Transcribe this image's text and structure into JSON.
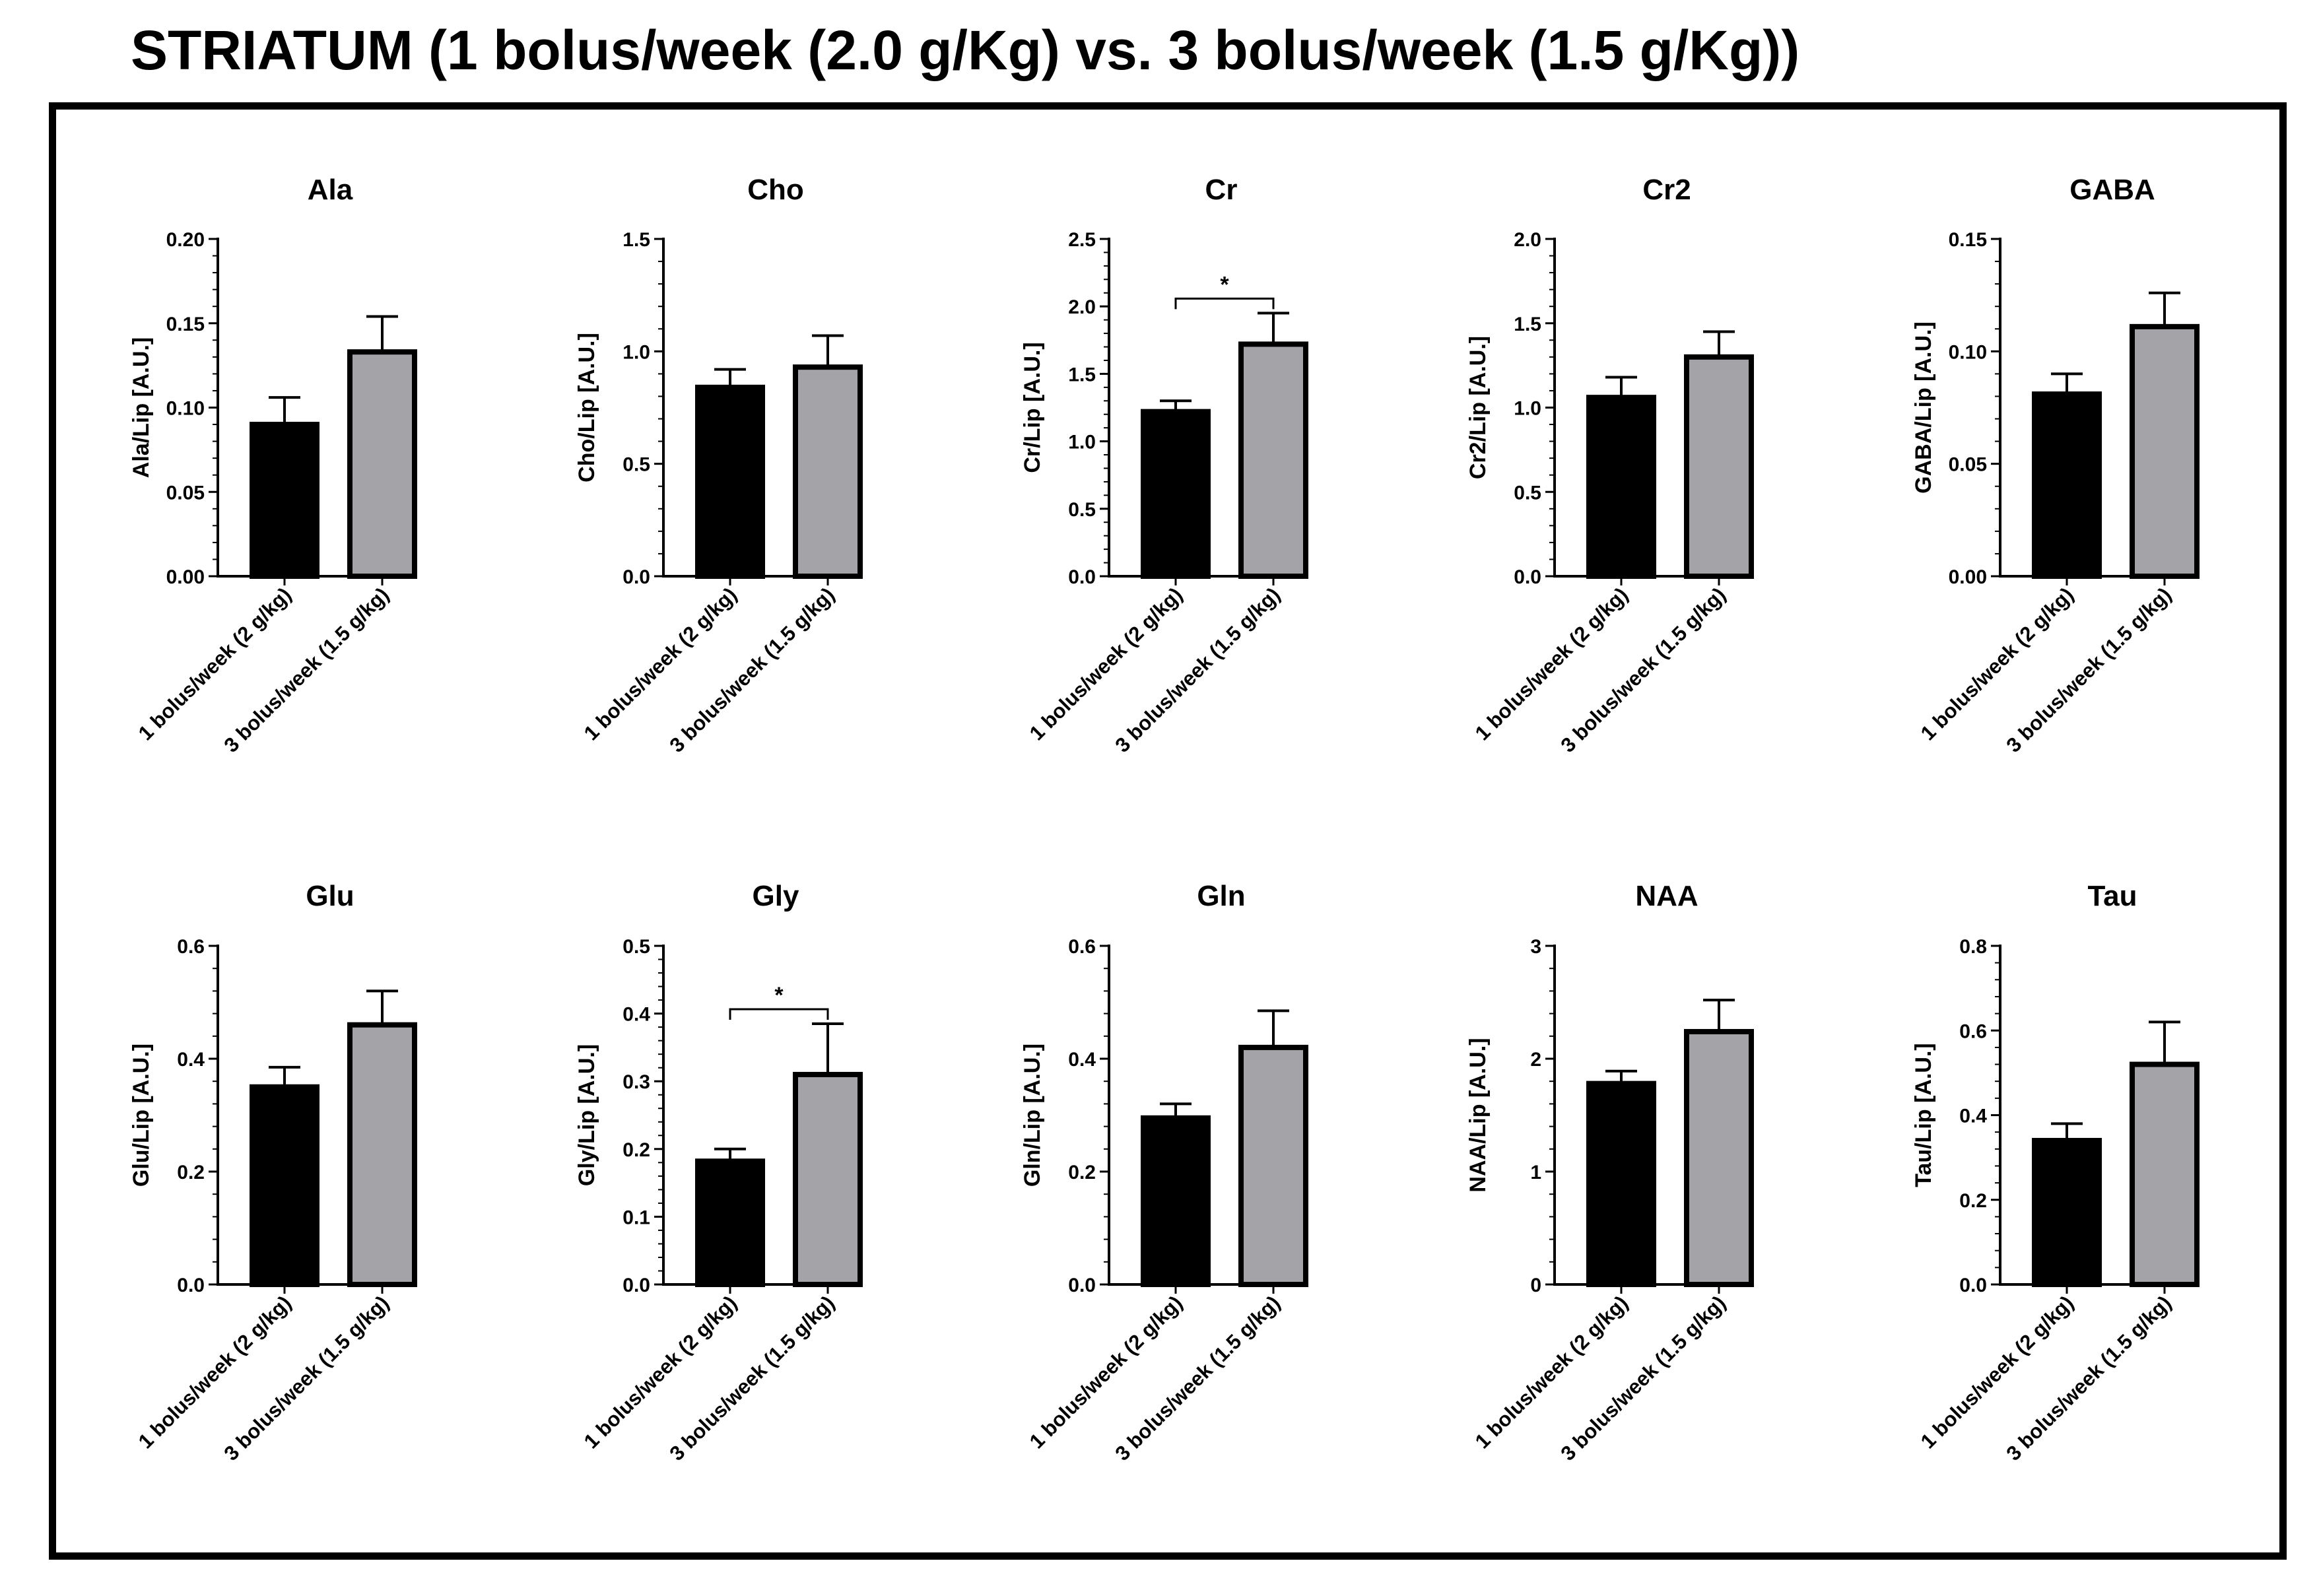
{
  "title": "STRIATUM (1 bolus/week (2.0 g/Kg) vs. 3 bolus/week (1.5 g/Kg))",
  "colors": {
    "group1": "#000000",
    "group2": "#a3a3a8",
    "axis": "#000000"
  },
  "chart_data": [
    {
      "type": "bar",
      "title": "Ala",
      "ylabel": "Ala/Lip [A.U.]",
      "categories": [
        "1 bolus/week (2 g/kg)",
        "3 bolus/week (1.5 g/kg)"
      ],
      "values": [
        0.09,
        0.133
      ],
      "errors": [
        0.016,
        0.021
      ],
      "ylim": [
        0,
        0.2
      ],
      "ticks": [
        "0.00",
        "0.05",
        "0.10",
        "0.15",
        "0.20"
      ],
      "significance": null
    },
    {
      "type": "bar",
      "title": "Cho",
      "ylabel": "Cho/Lip [A.U.]",
      "categories": [
        "1 bolus/week (2 g/kg)",
        "3 bolus/week (1.5 g/kg)"
      ],
      "values": [
        0.84,
        0.93
      ],
      "errors": [
        0.08,
        0.14
      ],
      "ylim": [
        0,
        1.5
      ],
      "ticks": [
        "0.0",
        "0.5",
        "1.0",
        "1.5"
      ],
      "significance": null
    },
    {
      "type": "bar",
      "title": "Cr",
      "ylabel": "Cr/Lip [A.U.]",
      "categories": [
        "1 bolus/week (2 g/kg)",
        "3 bolus/week (1.5 g/kg)"
      ],
      "values": [
        1.22,
        1.72
      ],
      "errors": [
        0.08,
        0.23
      ],
      "ylim": [
        0,
        2.5
      ],
      "ticks": [
        "0.0",
        "0.5",
        "1.0",
        "1.5",
        "2.0",
        "2.5"
      ],
      "significance": "*"
    },
    {
      "type": "bar",
      "title": "Cr2",
      "ylabel": "Cr2/Lip [A.U.]",
      "categories": [
        "1 bolus/week (2 g/kg)",
        "3 bolus/week (1.5 g/kg)"
      ],
      "values": [
        1.06,
        1.3
      ],
      "errors": [
        0.12,
        0.15
      ],
      "ylim": [
        0,
        2.0
      ],
      "ticks": [
        "0.0",
        "0.5",
        "1.0",
        "1.5",
        "2.0"
      ],
      "significance": null
    },
    {
      "type": "bar",
      "title": "GABA",
      "ylabel": "GABA/Lip [A.U.]",
      "categories": [
        "1 bolus/week (2 g/kg)",
        "3 bolus/week (1.5 g/kg)"
      ],
      "values": [
        0.081,
        0.111
      ],
      "errors": [
        0.009,
        0.015
      ],
      "ylim": [
        0,
        0.15
      ],
      "ticks": [
        "0.00",
        "0.05",
        "0.10",
        "0.15"
      ],
      "significance": null
    },
    {
      "type": "bar",
      "title": "Glu",
      "ylabel": "Glu/Lip [A.U.]",
      "categories": [
        "1 bolus/week (2 g/kg)",
        "3 bolus/week (1.5 g/kg)"
      ],
      "values": [
        0.35,
        0.46
      ],
      "errors": [
        0.035,
        0.06
      ],
      "ylim": [
        0,
        0.6
      ],
      "ticks": [
        "0.0",
        "0.2",
        "0.4",
        "0.6"
      ],
      "significance": null
    },
    {
      "type": "bar",
      "title": "Gly",
      "ylabel": "Gly/Lip [A.U.]",
      "categories": [
        "1 bolus/week (2 g/kg)",
        "3 bolus/week (1.5 g/kg)"
      ],
      "values": [
        0.182,
        0.31
      ],
      "errors": [
        0.018,
        0.075
      ],
      "ylim": [
        0,
        0.5
      ],
      "ticks": [
        "0.0",
        "0.1",
        "0.2",
        "0.3",
        "0.4",
        "0.5"
      ],
      "significance": "*"
    },
    {
      "type": "bar",
      "title": "Gln",
      "ylabel": "Gln/Lip [A.U.]",
      "categories": [
        "1 bolus/week (2 g/kg)",
        "3 bolus/week (1.5 g/kg)"
      ],
      "values": [
        0.295,
        0.42
      ],
      "errors": [
        0.025,
        0.065
      ],
      "ylim": [
        0,
        0.6
      ],
      "ticks": [
        "0.0",
        "0.2",
        "0.4",
        "0.6"
      ],
      "significance": null
    },
    {
      "type": "bar",
      "title": "NAA",
      "ylabel": "NAA/Lip [A.U.]",
      "categories": [
        "1 bolus/week (2 g/kg)",
        "3 bolus/week (1.5 g/kg)"
      ],
      "values": [
        1.78,
        2.24
      ],
      "errors": [
        0.11,
        0.28
      ],
      "ylim": [
        0,
        3
      ],
      "ticks": [
        "0",
        "1",
        "2",
        "3"
      ],
      "significance": null
    },
    {
      "type": "bar",
      "title": "Tau",
      "ylabel": "Tau/Lip [A.U.]",
      "categories": [
        "1 bolus/week (2 g/kg)",
        "3 bolus/week (1.5 g/kg)"
      ],
      "values": [
        0.34,
        0.52
      ],
      "errors": [
        0.04,
        0.1
      ],
      "ylim": [
        0,
        0.8
      ],
      "ticks": [
        "0.0",
        "0.2",
        "0.4",
        "0.6",
        "0.8"
      ],
      "significance": null
    }
  ]
}
